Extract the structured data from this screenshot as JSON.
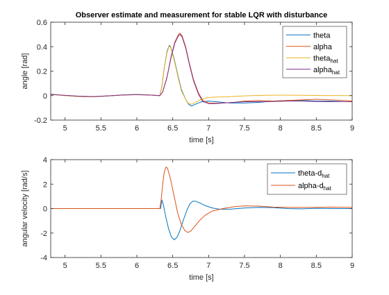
{
  "colors": {
    "theta": "#0072BD",
    "alpha": "#D95319",
    "theta_hat": "#EDB120",
    "alpha_hat": "#7E2F8E",
    "axis": "#262626",
    "background": "#FFFFFF"
  },
  "chart_data": [
    {
      "type": "line",
      "title": "Observer estimate and measurement for stable LQR with disturbance",
      "xlabel": "time [s]",
      "ylabel": "angle [rad]",
      "xlim": [
        4.8,
        9
      ],
      "ylim": [
        -0.2,
        0.6
      ],
      "xticks": [
        5,
        5.5,
        6,
        6.5,
        7,
        7.5,
        8,
        8.5,
        9
      ],
      "xtick_labels": [
        "5",
        "5.5",
        "6",
        "6.5",
        "7",
        "7.5",
        "8",
        "8.5",
        "9"
      ],
      "yticks": [
        -0.2,
        0,
        0.2,
        0.4,
        0.6
      ],
      "ytick_labels": [
        "-0.2",
        "0",
        "0.2",
        "0.4",
        "0.6"
      ],
      "grid": false,
      "legend_position": "top-right",
      "series": [
        {
          "name": "theta",
          "legend_main": "theta",
          "legend_sub": "",
          "color_key": "theta",
          "points": [
            [
              4.8,
              0.012
            ],
            [
              5.0,
              0.0
            ],
            [
              5.2,
              -0.008
            ],
            [
              5.4,
              -0.01
            ],
            [
              5.6,
              -0.003
            ],
            [
              5.8,
              0.006
            ],
            [
              6.0,
              0.01
            ],
            [
              6.2,
              0.004
            ],
            [
              6.3,
              0.0
            ],
            [
              6.32,
              0.0
            ],
            [
              6.35,
              0.08
            ],
            [
              6.38,
              0.22
            ],
            [
              6.42,
              0.36
            ],
            [
              6.45,
              0.41
            ],
            [
              6.47,
              0.4
            ],
            [
              6.52,
              0.3
            ],
            [
              6.57,
              0.17
            ],
            [
              6.62,
              0.05
            ],
            [
              6.68,
              -0.03
            ],
            [
              6.72,
              -0.07
            ],
            [
              6.76,
              -0.085
            ],
            [
              6.8,
              -0.075
            ],
            [
              6.9,
              -0.05
            ],
            [
              7.0,
              -0.045
            ],
            [
              7.1,
              -0.05
            ],
            [
              7.2,
              -0.055
            ],
            [
              7.3,
              -0.06
            ],
            [
              7.5,
              -0.06
            ],
            [
              7.7,
              -0.055
            ],
            [
              7.9,
              -0.045
            ],
            [
              8.1,
              -0.04
            ],
            [
              8.3,
              -0.04
            ],
            [
              8.5,
              -0.045
            ],
            [
              8.7,
              -0.045
            ],
            [
              8.9,
              -0.05
            ],
            [
              9.0,
              -0.05
            ]
          ]
        },
        {
          "name": "alpha",
          "legend_main": "alpha",
          "legend_sub": "",
          "color_key": "alpha",
          "points": [
            [
              4.8,
              0.01
            ],
            [
              5.0,
              0.002
            ],
            [
              5.2,
              -0.005
            ],
            [
              5.4,
              -0.008
            ],
            [
              5.6,
              -0.002
            ],
            [
              5.8,
              0.005
            ],
            [
              6.0,
              0.008
            ],
            [
              6.2,
              0.004
            ],
            [
              6.32,
              0.0
            ],
            [
              6.36,
              0.03
            ],
            [
              6.42,
              0.15
            ],
            [
              6.48,
              0.33
            ],
            [
              6.53,
              0.44
            ],
            [
              6.58,
              0.5
            ],
            [
              6.6,
              0.51
            ],
            [
              6.63,
              0.49
            ],
            [
              6.68,
              0.4
            ],
            [
              6.73,
              0.27
            ],
            [
              6.79,
              0.13
            ],
            [
              6.86,
              0.02
            ],
            [
              6.92,
              -0.04
            ],
            [
              7.0,
              -0.06
            ],
            [
              7.1,
              -0.062
            ],
            [
              7.2,
              -0.06
            ],
            [
              7.35,
              -0.055
            ],
            [
              7.5,
              -0.045
            ],
            [
              7.7,
              -0.04
            ],
            [
              7.9,
              -0.045
            ],
            [
              8.1,
              -0.04
            ],
            [
              8.3,
              -0.035
            ],
            [
              8.5,
              -0.03
            ],
            [
              8.7,
              -0.035
            ],
            [
              8.9,
              -0.04
            ],
            [
              9.0,
              -0.045
            ]
          ]
        },
        {
          "name": "theta_hat",
          "legend_main": "theta",
          "legend_sub": "hat",
          "color_key": "theta_hat",
          "points": [
            [
              4.8,
              0.01
            ],
            [
              5.0,
              0.0
            ],
            [
              5.2,
              -0.008
            ],
            [
              5.4,
              -0.01
            ],
            [
              5.6,
              -0.003
            ],
            [
              5.8,
              0.006
            ],
            [
              6.0,
              0.01
            ],
            [
              6.2,
              0.004
            ],
            [
              6.3,
              0.0
            ],
            [
              6.32,
              0.0
            ],
            [
              6.35,
              0.08
            ],
            [
              6.38,
              0.22
            ],
            [
              6.42,
              0.35
            ],
            [
              6.45,
              0.405
            ],
            [
              6.47,
              0.395
            ],
            [
              6.52,
              0.29
            ],
            [
              6.57,
              0.16
            ],
            [
              6.62,
              0.04
            ],
            [
              6.68,
              -0.03
            ],
            [
              6.72,
              -0.065
            ],
            [
              6.76,
              -0.07
            ],
            [
              6.82,
              -0.055
            ],
            [
              6.9,
              -0.03
            ],
            [
              7.0,
              -0.015
            ],
            [
              7.1,
              -0.012
            ],
            [
              7.25,
              -0.01
            ],
            [
              7.4,
              -0.005
            ],
            [
              7.6,
              0.0
            ],
            [
              7.8,
              0.003
            ],
            [
              8.0,
              0.004
            ],
            [
              8.3,
              0.003
            ],
            [
              8.6,
              0.001
            ],
            [
              9.0,
              0.0
            ]
          ]
        },
        {
          "name": "alpha_hat",
          "legend_main": "alpha",
          "legend_sub": "hat",
          "color_key": "alpha_hat",
          "points": [
            [
              4.8,
              0.01
            ],
            [
              5.0,
              0.002
            ],
            [
              5.2,
              -0.005
            ],
            [
              5.4,
              -0.008
            ],
            [
              5.6,
              -0.002
            ],
            [
              5.8,
              0.005
            ],
            [
              6.0,
              0.008
            ],
            [
              6.2,
              0.004
            ],
            [
              6.32,
              0.0
            ],
            [
              6.36,
              0.03
            ],
            [
              6.42,
              0.15
            ],
            [
              6.48,
              0.32
            ],
            [
              6.53,
              0.43
            ],
            [
              6.58,
              0.49
            ],
            [
              6.6,
              0.5
            ],
            [
              6.63,
              0.48
            ],
            [
              6.68,
              0.39
            ],
            [
              6.73,
              0.26
            ],
            [
              6.79,
              0.12
            ],
            [
              6.86,
              0.01
            ],
            [
              6.92,
              -0.05
            ],
            [
              7.0,
              -0.065
            ],
            [
              7.1,
              -0.065
            ],
            [
              7.2,
              -0.06
            ],
            [
              7.35,
              -0.055
            ],
            [
              7.5,
              -0.05
            ],
            [
              7.7,
              -0.05
            ],
            [
              7.9,
              -0.048
            ],
            [
              8.1,
              -0.045
            ],
            [
              8.3,
              -0.045
            ],
            [
              8.5,
              -0.048
            ],
            [
              8.7,
              -0.05
            ],
            [
              8.9,
              -0.05
            ],
            [
              9.0,
              -0.05
            ]
          ]
        }
      ]
    },
    {
      "type": "line",
      "title": "",
      "xlabel": "time [s]",
      "ylabel": "angular velocity [rad/s]",
      "xlim": [
        4.8,
        9
      ],
      "ylim": [
        -4,
        4
      ],
      "xticks": [
        5,
        5.5,
        6,
        6.5,
        7,
        7.5,
        8,
        8.5,
        9
      ],
      "xtick_labels": [
        "5",
        "5.5",
        "6",
        "6.5",
        "7",
        "7.5",
        "8",
        "8.5",
        "9"
      ],
      "yticks": [
        -4,
        -2,
        0,
        2,
        4
      ],
      "ytick_labels": [
        "-4",
        "-2",
        "0",
        "2",
        "4"
      ],
      "grid": false,
      "legend_position": "top-right",
      "series": [
        {
          "name": "theta-d_hat",
          "legend_main": "theta-d",
          "legend_sub": "hat",
          "color_key": "theta",
          "points": [
            [
              4.8,
              0.0
            ],
            [
              5.5,
              0.0
            ],
            [
              6.0,
              0.0
            ],
            [
              6.3,
              0.0
            ],
            [
              6.33,
              0.0
            ],
            [
              6.35,
              0.7
            ],
            [
              6.37,
              0.3
            ],
            [
              6.4,
              -0.6
            ],
            [
              6.44,
              -1.6
            ],
            [
              6.48,
              -2.3
            ],
            [
              6.52,
              -2.55
            ],
            [
              6.56,
              -2.35
            ],
            [
              6.6,
              -1.8
            ],
            [
              6.65,
              -0.9
            ],
            [
              6.7,
              -0.1
            ],
            [
              6.74,
              0.4
            ],
            [
              6.78,
              0.6
            ],
            [
              6.82,
              0.6
            ],
            [
              6.88,
              0.45
            ],
            [
              6.95,
              0.25
            ],
            [
              7.05,
              0.05
            ],
            [
              7.15,
              -0.05
            ],
            [
              7.3,
              -0.05
            ],
            [
              7.5,
              0.05
            ],
            [
              7.7,
              0.1
            ],
            [
              7.9,
              0.08
            ],
            [
              8.1,
              0.0
            ],
            [
              8.3,
              -0.02
            ],
            [
              8.5,
              0.02
            ],
            [
              8.7,
              0.0
            ],
            [
              9.0,
              0.0
            ]
          ]
        },
        {
          "name": "alpha-d_hat",
          "legend_main": "alpha-d",
          "legend_sub": "hat",
          "color_key": "alpha",
          "points": [
            [
              4.8,
              0.0
            ],
            [
              5.5,
              0.0
            ],
            [
              6.0,
              0.0
            ],
            [
              6.3,
              0.0
            ],
            [
              6.32,
              0.0
            ],
            [
              6.34,
              0.8
            ],
            [
              6.36,
              2.0
            ],
            [
              6.38,
              2.9
            ],
            [
              6.4,
              3.35
            ],
            [
              6.41,
              3.4
            ],
            [
              6.43,
              3.25
            ],
            [
              6.47,
              2.4
            ],
            [
              6.52,
              1.0
            ],
            [
              6.57,
              -0.4
            ],
            [
              6.62,
              -1.3
            ],
            [
              6.67,
              -1.8
            ],
            [
              6.71,
              -1.95
            ],
            [
              6.75,
              -1.85
            ],
            [
              6.8,
              -1.5
            ],
            [
              6.87,
              -1.0
            ],
            [
              6.95,
              -0.55
            ],
            [
              7.05,
              -0.2
            ],
            [
              7.2,
              0.0
            ],
            [
              7.35,
              0.15
            ],
            [
              7.5,
              0.22
            ],
            [
              7.7,
              0.2
            ],
            [
              7.9,
              0.12
            ],
            [
              8.1,
              0.1
            ],
            [
              8.3,
              0.1
            ],
            [
              8.5,
              0.1
            ],
            [
              8.7,
              0.12
            ],
            [
              9.0,
              0.1
            ]
          ]
        }
      ]
    }
  ]
}
